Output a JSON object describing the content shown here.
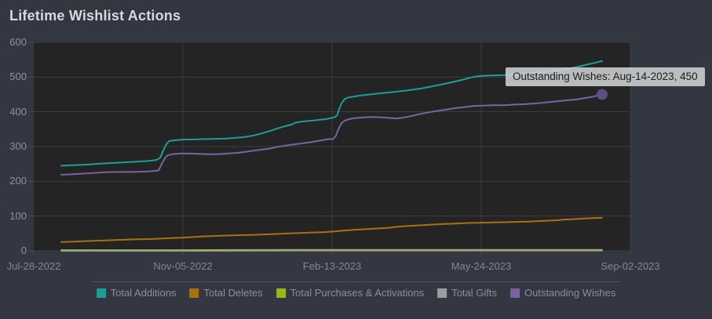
{
  "title": "Lifetime Wishlist Actions",
  "tooltip": {
    "text": "Outstanding Wishes: Aug-14-2023, 450"
  },
  "colors": {
    "background": "#333741",
    "plot_background": "#242424",
    "grid": "#3d3d40",
    "tick": "#4a4d52",
    "title_text": "#d8d9db",
    "y_label_text": "#8f9194",
    "x_label_text": "#85878b",
    "legend_text": "#8c8e91",
    "legend_border": "#4f5257",
    "tooltip_background": "rgba(212,214,216,0.85)",
    "tooltip_text": "#1c1c1c"
  },
  "chart_data": {
    "type": "line",
    "title": "Lifetime Wishlist Actions",
    "grid": true,
    "legend_position": "bottom",
    "x_axis": {
      "kind": "date",
      "range_days": [
        0,
        401
      ],
      "tick_days": [
        0,
        100.25,
        200.5,
        300.75,
        401
      ],
      "tick_labels": [
        "Jul-28-2022",
        "Nov-05-2022",
        "Feb-13-2023",
        "May-24-2023",
        "Sep-02-2023"
      ]
    },
    "y_axis": {
      "min": 0,
      "max": 600,
      "tick_interval": 100,
      "tick_values": [
        0,
        100,
        200,
        300,
        400,
        500,
        600
      ],
      "tick_labels": [
        "0",
        "100",
        "200",
        "300",
        "400",
        "500",
        "600"
      ]
    },
    "series": [
      {
        "name": "Total Additions",
        "color": "#1e9e96",
        "points": [
          [
            18.5,
            245
          ],
          [
            25,
            246
          ],
          [
            35,
            248
          ],
          [
            45,
            251
          ],
          [
            55,
            253
          ],
          [
            67,
            256
          ],
          [
            75,
            258
          ],
          [
            80,
            260
          ],
          [
            83,
            262
          ],
          [
            85,
            268
          ],
          [
            87,
            288
          ],
          [
            89,
            306
          ],
          [
            91,
            316
          ],
          [
            95,
            318
          ],
          [
            100,
            320
          ],
          [
            110,
            321
          ],
          [
            120,
            322
          ],
          [
            130,
            323
          ],
          [
            141,
            327
          ],
          [
            148,
            332
          ],
          [
            155,
            340
          ],
          [
            161,
            348
          ],
          [
            166,
            355
          ],
          [
            170,
            360
          ],
          [
            173,
            363
          ],
          [
            176,
            369
          ],
          [
            180,
            372
          ],
          [
            188,
            375
          ],
          [
            196,
            379
          ],
          [
            200,
            382
          ],
          [
            202,
            384
          ],
          [
            204,
            390
          ],
          [
            205,
            405
          ],
          [
            207,
            425
          ],
          [
            209,
            437
          ],
          [
            211,
            441
          ],
          [
            215,
            444
          ],
          [
            220,
            447
          ],
          [
            226,
            450
          ],
          [
            232,
            453
          ],
          [
            240,
            456
          ],
          [
            250,
            461
          ],
          [
            260,
            467
          ],
          [
            270,
            475
          ],
          [
            280,
            484
          ],
          [
            288,
            492
          ],
          [
            294,
            499
          ],
          [
            298,
            502
          ],
          [
            303,
            504
          ],
          [
            310,
            505
          ],
          [
            318,
            506
          ],
          [
            325,
            508
          ],
          [
            332,
            510
          ],
          [
            338,
            513
          ],
          [
            344,
            515
          ],
          [
            350,
            518
          ],
          [
            355,
            521
          ],
          [
            360,
            525
          ],
          [
            366,
            530
          ],
          [
            372,
            536
          ],
          [
            377,
            541
          ],
          [
            382,
            546
          ]
        ]
      },
      {
        "name": "Total Deletes",
        "color": "#aa7113",
        "points": [
          [
            18.5,
            25
          ],
          [
            30,
            27
          ],
          [
            42,
            29
          ],
          [
            55,
            31
          ],
          [
            67,
            33
          ],
          [
            80,
            34
          ],
          [
            90,
            36
          ],
          [
            100,
            38
          ],
          [
            112,
            41
          ],
          [
            124,
            43
          ],
          [
            136,
            45
          ],
          [
            148,
            46
          ],
          [
            160,
            48
          ],
          [
            172,
            50
          ],
          [
            184,
            52
          ],
          [
            196,
            54
          ],
          [
            202,
            56
          ],
          [
            208,
            58
          ],
          [
            214,
            60
          ],
          [
            222,
            62
          ],
          [
            230,
            64
          ],
          [
            238,
            66
          ],
          [
            244,
            69
          ],
          [
            250,
            71
          ],
          [
            258,
            73
          ],
          [
            266,
            75
          ],
          [
            274,
            77
          ],
          [
            282,
            78
          ],
          [
            292,
            80
          ],
          [
            302,
            81
          ],
          [
            312,
            82
          ],
          [
            322,
            83
          ],
          [
            332,
            84
          ],
          [
            342,
            86
          ],
          [
            352,
            88
          ],
          [
            356,
            90
          ],
          [
            362,
            91
          ],
          [
            370,
            93
          ],
          [
            376,
            94
          ],
          [
            382,
            95
          ]
        ]
      },
      {
        "name": "Total Purchases & Activations",
        "color": "#9cb513",
        "points": [
          [
            18.5,
            2
          ],
          [
            100,
            2
          ],
          [
            200,
            3
          ],
          [
            300,
            3
          ],
          [
            382,
            3
          ]
        ]
      },
      {
        "name": "Total Gifts",
        "color": "#9d9ea0",
        "points": [
          [
            18.5,
            0
          ],
          [
            100,
            0
          ],
          [
            200,
            1
          ],
          [
            300,
            1
          ],
          [
            382,
            1
          ]
        ]
      },
      {
        "name": "Outstanding Wishes",
        "color": "#7a63a1",
        "points": [
          [
            18.5,
            219
          ],
          [
            25,
            220
          ],
          [
            32,
            222
          ],
          [
            40,
            224
          ],
          [
            48,
            226
          ],
          [
            58,
            227
          ],
          [
            67,
            227
          ],
          [
            75,
            228
          ],
          [
            82,
            230
          ],
          [
            84,
            232
          ],
          [
            86,
            250
          ],
          [
            88,
            266
          ],
          [
            90,
            275
          ],
          [
            93,
            278
          ],
          [
            98,
            280
          ],
          [
            104,
            280
          ],
          [
            110,
            279
          ],
          [
            117,
            278
          ],
          [
            124,
            278
          ],
          [
            130,
            280
          ],
          [
            137,
            282
          ],
          [
            144,
            286
          ],
          [
            151,
            290
          ],
          [
            158,
            294
          ],
          [
            165,
            300
          ],
          [
            171,
            304
          ],
          [
            178,
            308
          ],
          [
            185,
            312
          ],
          [
            191,
            316
          ],
          [
            196,
            320
          ],
          [
            199,
            322
          ],
          [
            201,
            321
          ],
          [
            203,
            330
          ],
          [
            205,
            352
          ],
          [
            207,
            368
          ],
          [
            209,
            375
          ],
          [
            212,
            379
          ],
          [
            216,
            382
          ],
          [
            222,
            384
          ],
          [
            228,
            385
          ],
          [
            234,
            384
          ],
          [
            240,
            382
          ],
          [
            244,
            381
          ],
          [
            248,
            383
          ],
          [
            254,
            388
          ],
          [
            260,
            394
          ],
          [
            266,
            399
          ],
          [
            272,
            403
          ],
          [
            278,
            407
          ],
          [
            284,
            411
          ],
          [
            290,
            414
          ],
          [
            296,
            417
          ],
          [
            302,
            418
          ],
          [
            309,
            419
          ],
          [
            316,
            419
          ],
          [
            323,
            421
          ],
          [
            330,
            422
          ],
          [
            337,
            424
          ],
          [
            344,
            427
          ],
          [
            351,
            430
          ],
          [
            358,
            433
          ],
          [
            365,
            436
          ],
          [
            371,
            440
          ],
          [
            376,
            444
          ],
          [
            382,
            450
          ]
        ]
      }
    ],
    "highlight": {
      "series": "Outstanding Wishes",
      "date": "Aug-14-2023",
      "day": 382,
      "value": 450,
      "marker_color": "#5f4d82"
    }
  }
}
